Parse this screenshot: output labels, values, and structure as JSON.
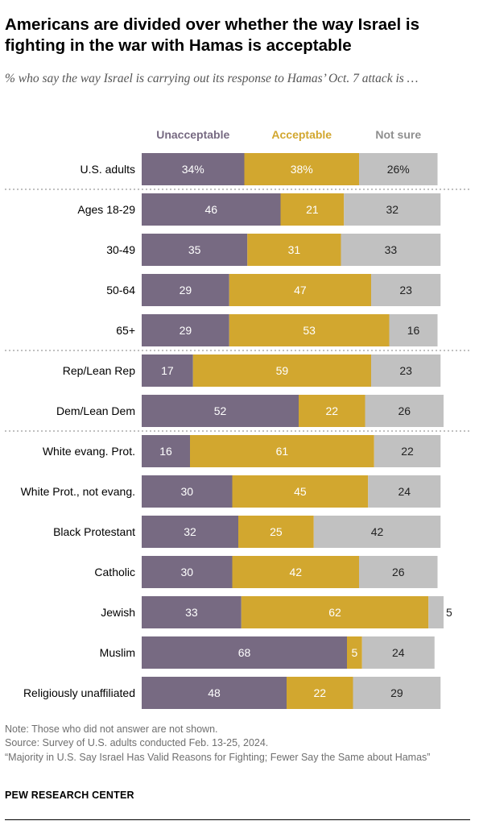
{
  "title": "Americans are divided over whether the way Israel is fighting in the war with Hamas is acceptable",
  "subtitle": "% who say the way Israel is carrying out its response to Hamas’ Oct. 7 attack is …",
  "chart_data": {
    "type": "bar",
    "orientation": "horizontal",
    "stacked": true,
    "categories": [
      "U.S. adults",
      "Ages 18-29",
      "30-49",
      "50-64",
      "65+",
      "Rep/Lean Rep",
      "Dem/Lean Dem",
      "White evang. Prot.",
      "White Prot., not evang.",
      "Black Protestant",
      "Catholic",
      "Jewish",
      "Muslim",
      "Religiously unaffiliated"
    ],
    "value_labels": [
      "34%",
      "38%",
      "26%"
    ],
    "series": [
      {
        "name": "Unacceptable",
        "color": "#776a82",
        "label_color": "#ffffff",
        "values": [
          34,
          46,
          35,
          29,
          29,
          17,
          52,
          16,
          30,
          32,
          30,
          33,
          68,
          48
        ]
      },
      {
        "name": "Acceptable",
        "color": "#d2a72f",
        "label_color": "#ffffff",
        "values": [
          38,
          21,
          31,
          47,
          53,
          59,
          22,
          61,
          45,
          25,
          42,
          62,
          5,
          22
        ]
      },
      {
        "name": "Not sure",
        "color": "#c1c1c1",
        "label_color": "#222222",
        "values": [
          26,
          32,
          33,
          23,
          16,
          23,
          26,
          22,
          24,
          42,
          26,
          5,
          24,
          29
        ]
      }
    ],
    "group_separators_after": [
      0,
      4,
      6
    ],
    "xlim": [
      0,
      100
    ],
    "grid": false
  },
  "footer": {
    "note": "Note: Those who did not answer are not shown.",
    "source": "Source: Survey of U.S. adults conducted Feb. 13-25, 2024.",
    "report": "“Majority in U.S. Say Israel Has Valid Reasons for Fighting; Fewer Say the Same about Hamas”",
    "brand": "PEW RESEARCH CENTER"
  }
}
